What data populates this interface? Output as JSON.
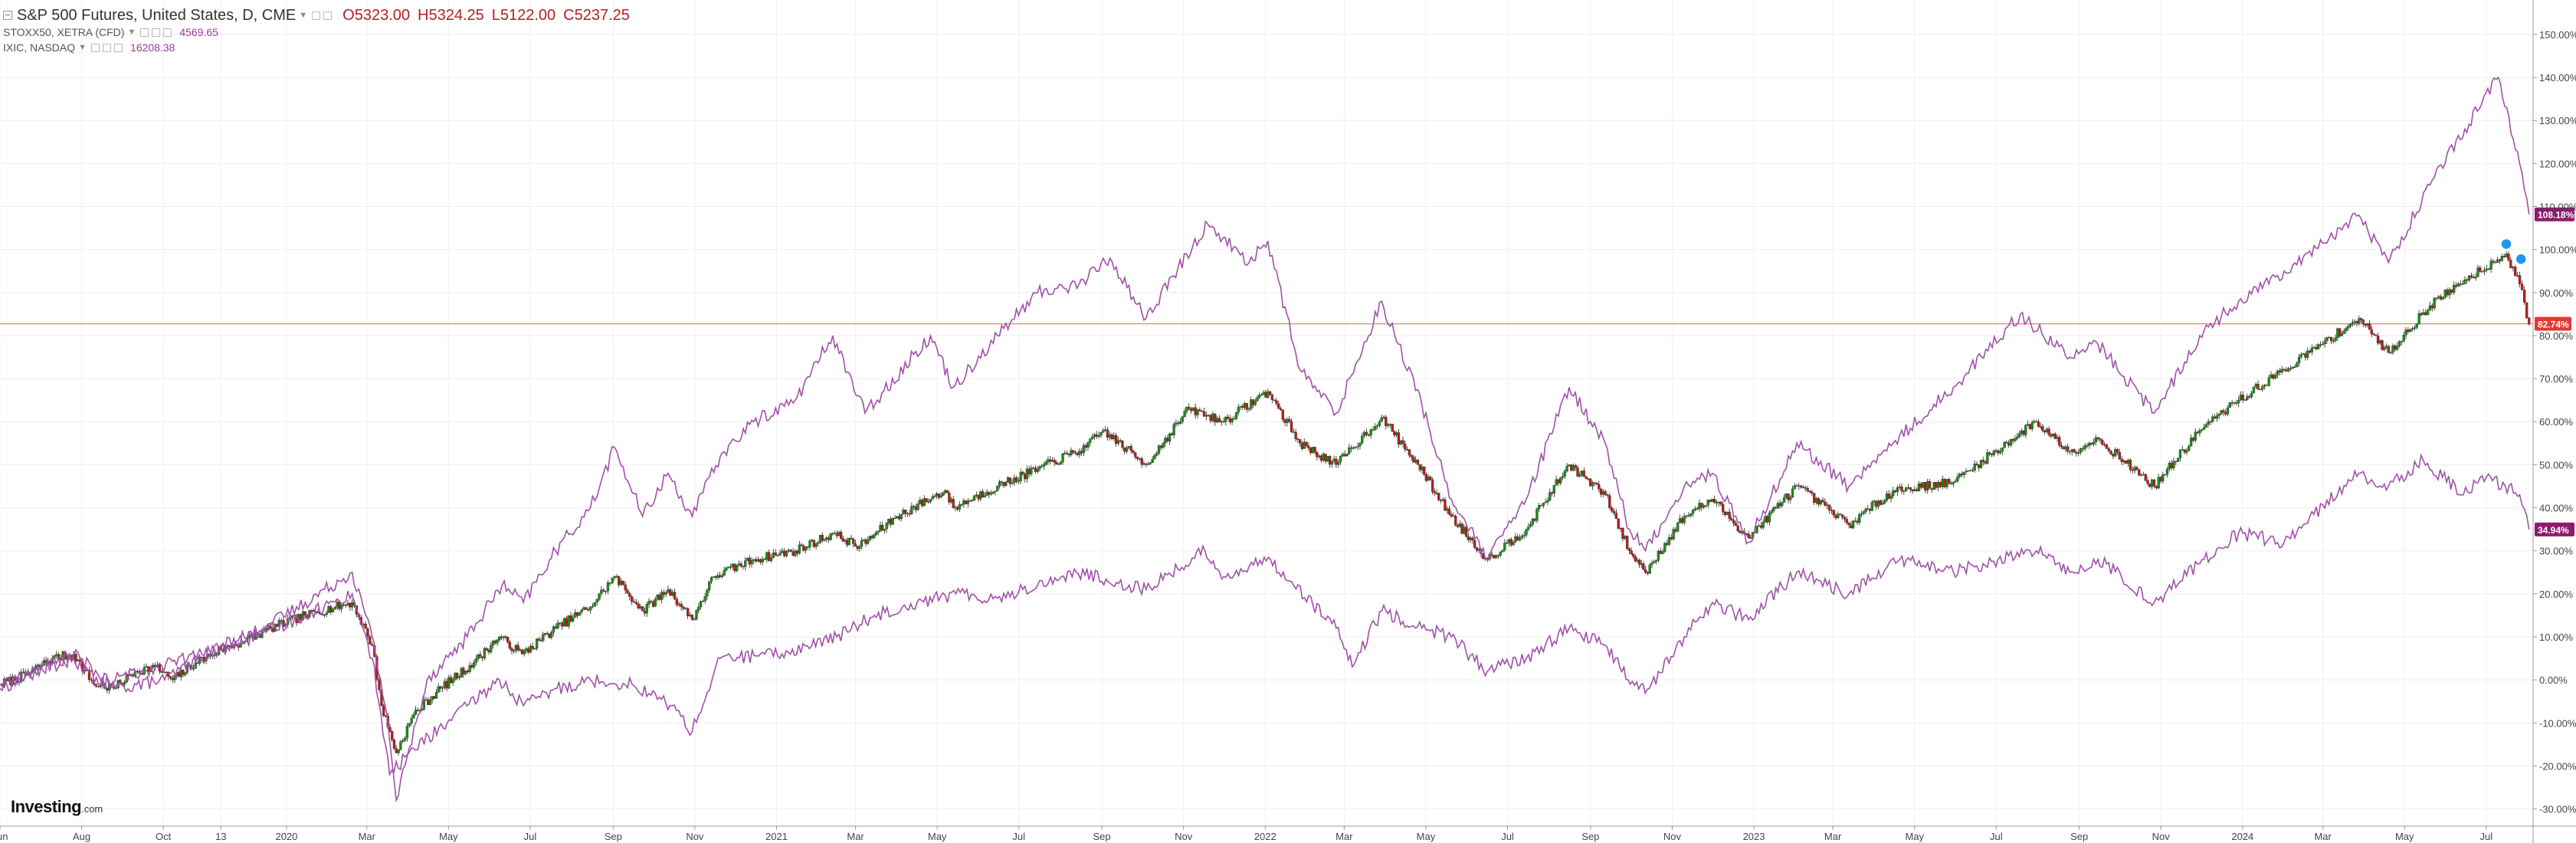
{
  "header": {
    "main_instrument": "S&P 500 Futures, United States, D, CME",
    "open_label": "O",
    "open": "5323.00",
    "high_label": "H",
    "high": "5324.25",
    "low_label": "L",
    "low": "5122.00",
    "close_label": "C",
    "close": "5237.25",
    "compare1_name": "STOXX50, XETRA (CFD)",
    "compare1_value": "4569.65",
    "compare2_name": "IXIC, NASDAQ",
    "compare2_value": "16208.38"
  },
  "brand": {
    "name": "Investing",
    "suffix": ".com"
  },
  "chart_data": {
    "type": "line",
    "y_unit": "%",
    "ylim": [
      -34,
      158
    ],
    "y_ticks": [
      -30,
      -20,
      -10,
      0,
      10,
      20,
      30,
      40,
      50,
      60,
      70,
      80,
      90,
      100,
      110,
      120,
      130,
      140,
      150
    ],
    "y_tick_labels": [
      "-30.00%",
      "-20.00%",
      "-10.00%",
      "0.00%",
      "10.00%",
      "20.00%",
      "30.00%",
      "40.00%",
      "50.00%",
      "60.00%",
      "70.00%",
      "80.00%",
      "90.00%",
      "100.00%",
      "110.00%",
      "120.00%",
      "130.00%",
      "140.00%",
      "150.00%"
    ],
    "x_range": [
      "2019-06-01",
      "2024-08-05"
    ],
    "x_ticks": [
      {
        "date": "2019-06-01",
        "label": "Jun"
      },
      {
        "date": "2019-08-01",
        "label": "Aug"
      },
      {
        "date": "2019-10-01",
        "label": "Oct"
      },
      {
        "date": "2019-11-13",
        "label": "13"
      },
      {
        "date": "2020-01-01",
        "label": "2020"
      },
      {
        "date": "2020-03-01",
        "label": "Mar"
      },
      {
        "date": "2020-05-01",
        "label": "May"
      },
      {
        "date": "2020-07-01",
        "label": "Jul"
      },
      {
        "date": "2020-09-01",
        "label": "Sep"
      },
      {
        "date": "2020-11-01",
        "label": "Nov"
      },
      {
        "date": "2021-01-01",
        "label": "2021"
      },
      {
        "date": "2021-03-01",
        "label": "Mar"
      },
      {
        "date": "2021-05-01",
        "label": "May"
      },
      {
        "date": "2021-07-01",
        "label": "Jul"
      },
      {
        "date": "2021-09-01",
        "label": "Sep"
      },
      {
        "date": "2021-11-01",
        "label": "Nov"
      },
      {
        "date": "2022-01-01",
        "label": "2022"
      },
      {
        "date": "2022-03-01",
        "label": "Mar"
      },
      {
        "date": "2022-05-01",
        "label": "May"
      },
      {
        "date": "2022-07-01",
        "label": "Jul"
      },
      {
        "date": "2022-09-01",
        "label": "Sep"
      },
      {
        "date": "2022-11-01",
        "label": "Nov"
      },
      {
        "date": "2023-01-01",
        "label": "2023"
      },
      {
        "date": "2023-03-01",
        "label": "Mar"
      },
      {
        "date": "2023-05-01",
        "label": "May"
      },
      {
        "date": "2023-07-01",
        "label": "Jul"
      },
      {
        "date": "2023-09-01",
        "label": "Sep"
      },
      {
        "date": "2023-11-01",
        "label": "Nov"
      },
      {
        "date": "2024-01-01",
        "label": "2024"
      },
      {
        "date": "2024-03-01",
        "label": "Mar"
      },
      {
        "date": "2024-05-01",
        "label": "May"
      },
      {
        "date": "2024-07-01",
        "label": "Jul"
      }
    ],
    "price_line": {
      "value": 82.74,
      "label": "82.74%",
      "color": "#e53935"
    },
    "series": [
      {
        "name": "S&P 500 Futures, United States, D, CME",
        "style": "candlestick",
        "up_color": "#1b8a1b",
        "down_color": "#b71c1c",
        "points": [
          [
            "2019-06-01",
            -1
          ],
          [
            "2019-06-20",
            1
          ],
          [
            "2019-07-10",
            5
          ],
          [
            "2019-07-26",
            6
          ],
          [
            "2019-08-10",
            -1
          ],
          [
            "2019-08-25",
            -2
          ],
          [
            "2019-09-10",
            2
          ],
          [
            "2019-09-25",
            3
          ],
          [
            "2019-10-08",
            0
          ],
          [
            "2019-10-25",
            4
          ],
          [
            "2019-11-13",
            7
          ],
          [
            "2019-12-01",
            9
          ],
          [
            "2019-12-20",
            12
          ],
          [
            "2020-01-15",
            15
          ],
          [
            "2020-02-19",
            18
          ],
          [
            "2020-03-05",
            8
          ],
          [
            "2020-03-12",
            -6
          ],
          [
            "2020-03-23",
            -17
          ],
          [
            "2020-04-05",
            -8
          ],
          [
            "2020-04-25",
            -2
          ],
          [
            "2020-05-20",
            4
          ],
          [
            "2020-06-08",
            10
          ],
          [
            "2020-06-25",
            6
          ],
          [
            "2020-07-20",
            12
          ],
          [
            "2020-08-15",
            17
          ],
          [
            "2020-09-02",
            24
          ],
          [
            "2020-09-23",
            16
          ],
          [
            "2020-10-12",
            21
          ],
          [
            "2020-10-30",
            14
          ],
          [
            "2020-11-15",
            24
          ],
          [
            "2020-12-15",
            28
          ],
          [
            "2021-01-15",
            30
          ],
          [
            "2021-02-12",
            34
          ],
          [
            "2021-03-04",
            31
          ],
          [
            "2021-04-01",
            38
          ],
          [
            "2021-05-07",
            44
          ],
          [
            "2021-05-13",
            40
          ],
          [
            "2021-06-15",
            45
          ],
          [
            "2021-07-15",
            49
          ],
          [
            "2021-08-20",
            54
          ],
          [
            "2021-09-02",
            58
          ],
          [
            "2021-10-04",
            50
          ],
          [
            "2021-11-05",
            63
          ],
          [
            "2021-12-01",
            60
          ],
          [
            "2022-01-03",
            67
          ],
          [
            "2022-01-27",
            55
          ],
          [
            "2022-02-23",
            50
          ],
          [
            "2022-03-29",
            61
          ],
          [
            "2022-04-25",
            50
          ],
          [
            "2022-05-20",
            38
          ],
          [
            "2022-06-16",
            28
          ],
          [
            "2022-07-15",
            35
          ],
          [
            "2022-08-16",
            50
          ],
          [
            "2022-09-12",
            43
          ],
          [
            "2022-09-30",
            30
          ],
          [
            "2022-10-12",
            25
          ],
          [
            "2022-11-10",
            38
          ],
          [
            "2022-12-01",
            42
          ],
          [
            "2022-12-28",
            33
          ],
          [
            "2023-02-02",
            45
          ],
          [
            "2023-03-13",
            36
          ],
          [
            "2023-04-15",
            44
          ],
          [
            "2023-05-30",
            46
          ],
          [
            "2023-07-31",
            60
          ],
          [
            "2023-08-25",
            53
          ],
          [
            "2023-09-15",
            56
          ],
          [
            "2023-10-27",
            45
          ],
          [
            "2023-11-30",
            58
          ],
          [
            "2023-12-29",
            65
          ],
          [
            "2024-02-01",
            72
          ],
          [
            "2024-03-28",
            84
          ],
          [
            "2024-04-19",
            76
          ],
          [
            "2024-05-20",
            87
          ],
          [
            "2024-06-15",
            93
          ],
          [
            "2024-07-16",
            99
          ],
          [
            "2024-07-26",
            92
          ],
          [
            "2024-08-02",
            82.74
          ]
        ]
      },
      {
        "name": "IXIC, NASDAQ",
        "style": "line",
        "color": "#a051a8",
        "last_label": "108.18%",
        "points": [
          [
            "2019-06-01",
            -2
          ],
          [
            "2019-07-26",
            6
          ],
          [
            "2019-08-26",
            -2
          ],
          [
            "2019-10-02",
            0
          ],
          [
            "2019-11-13",
            8
          ],
          [
            "2019-12-15",
            12
          ],
          [
            "2020-01-15",
            18
          ],
          [
            "2020-02-19",
            25
          ],
          [
            "2020-03-05",
            10
          ],
          [
            "2020-03-16",
            -8
          ],
          [
            "2020-03-23",
            -28
          ],
          [
            "2020-04-15",
            0
          ],
          [
            "2020-05-15",
            10
          ],
          [
            "2020-06-10",
            22
          ],
          [
            "2020-06-26",
            18
          ],
          [
            "2020-07-20",
            30
          ],
          [
            "2020-08-15",
            40
          ],
          [
            "2020-09-02",
            54
          ],
          [
            "2020-09-23",
            38
          ],
          [
            "2020-10-12",
            48
          ],
          [
            "2020-10-30",
            38
          ],
          [
            "2020-11-20",
            52
          ],
          [
            "2020-12-15",
            60
          ],
          [
            "2021-01-15",
            65
          ],
          [
            "2021-02-12",
            80
          ],
          [
            "2021-03-08",
            62
          ],
          [
            "2021-04-26",
            80
          ],
          [
            "2021-05-13",
            68
          ],
          [
            "2021-06-15",
            80
          ],
          [
            "2021-07-15",
            90
          ],
          [
            "2021-08-15",
            92
          ],
          [
            "2021-09-07",
            98
          ],
          [
            "2021-10-04",
            84
          ],
          [
            "2021-11-19",
            106
          ],
          [
            "2021-12-20",
            97
          ],
          [
            "2022-01-03",
            102
          ],
          [
            "2022-01-27",
            72
          ],
          [
            "2022-02-23",
            62
          ],
          [
            "2022-03-29",
            88
          ],
          [
            "2022-04-28",
            64
          ],
          [
            "2022-05-20",
            42
          ],
          [
            "2022-06-16",
            28
          ],
          [
            "2022-07-15",
            42
          ],
          [
            "2022-08-16",
            68
          ],
          [
            "2022-09-12",
            55
          ],
          [
            "2022-09-30",
            35
          ],
          [
            "2022-10-12",
            30
          ],
          [
            "2022-11-10",
            45
          ],
          [
            "2022-12-01",
            48
          ],
          [
            "2022-12-28",
            32
          ],
          [
            "2023-02-02",
            55
          ],
          [
            "2023-03-13",
            45
          ],
          [
            "2023-04-15",
            55
          ],
          [
            "2023-05-30",
            68
          ],
          [
            "2023-07-19",
            85
          ],
          [
            "2023-08-25",
            75
          ],
          [
            "2023-09-15",
            78
          ],
          [
            "2023-10-27",
            62
          ],
          [
            "2023-11-30",
            80
          ],
          [
            "2023-12-29",
            88
          ],
          [
            "2024-02-01",
            95
          ],
          [
            "2024-03-28",
            108
          ],
          [
            "2024-04-19",
            97
          ],
          [
            "2024-05-20",
            115
          ],
          [
            "2024-06-15",
            128
          ],
          [
            "2024-07-10",
            140
          ],
          [
            "2024-07-26",
            120
          ],
          [
            "2024-08-02",
            108.18
          ]
        ]
      },
      {
        "name": "STOXX50, XETRA (CFD)",
        "style": "line",
        "color": "#a051a8",
        "last_label": "34.94%",
        "points": [
          [
            "2019-06-01",
            -1
          ],
          [
            "2019-07-26",
            5
          ],
          [
            "2019-08-15",
            -1
          ],
          [
            "2019-09-25",
            3
          ],
          [
            "2019-11-13",
            7
          ],
          [
            "2019-12-15",
            11
          ],
          [
            "2020-01-15",
            15
          ],
          [
            "2020-02-19",
            20
          ],
          [
            "2020-03-05",
            5
          ],
          [
            "2020-03-18",
            -22
          ],
          [
            "2020-04-05",
            -16
          ],
          [
            "2020-04-30",
            -10
          ],
          [
            "2020-06-08",
            0
          ],
          [
            "2020-06-26",
            -6
          ],
          [
            "2020-07-21",
            -2
          ],
          [
            "2020-08-15",
            0
          ],
          [
            "2020-09-15",
            -1
          ],
          [
            "2020-10-15",
            -6
          ],
          [
            "2020-10-30",
            -12
          ],
          [
            "2020-11-20",
            5
          ],
          [
            "2021-01-05",
            6
          ],
          [
            "2021-02-15",
            10
          ],
          [
            "2021-03-15",
            15
          ],
          [
            "2021-04-16",
            18
          ],
          [
            "2021-05-15",
            20
          ],
          [
            "2021-06-15",
            19
          ],
          [
            "2021-07-15",
            22
          ],
          [
            "2021-08-13",
            25
          ],
          [
            "2021-10-04",
            21
          ],
          [
            "2021-11-17",
            30
          ],
          [
            "2021-12-01",
            24
          ],
          [
            "2022-01-05",
            28
          ],
          [
            "2022-02-23",
            12
          ],
          [
            "2022-03-07",
            3
          ],
          [
            "2022-03-29",
            16
          ],
          [
            "2022-04-28",
            12
          ],
          [
            "2022-05-20",
            10
          ],
          [
            "2022-06-16",
            2
          ],
          [
            "2022-07-15",
            5
          ],
          [
            "2022-08-16",
            12
          ],
          [
            "2022-09-12",
            8
          ],
          [
            "2022-09-29",
            0
          ],
          [
            "2022-10-15",
            -2
          ],
          [
            "2022-11-10",
            10
          ],
          [
            "2022-12-01",
            18
          ],
          [
            "2022-12-28",
            14
          ],
          [
            "2023-02-02",
            25
          ],
          [
            "2023-03-13",
            20
          ],
          [
            "2023-04-20",
            28
          ],
          [
            "2023-05-30",
            25
          ],
          [
            "2023-07-31",
            30
          ],
          [
            "2023-08-25",
            25
          ],
          [
            "2023-09-15",
            28
          ],
          [
            "2023-10-27",
            18
          ],
          [
            "2023-11-30",
            27
          ],
          [
            "2023-12-29",
            34
          ],
          [
            "2024-02-01",
            32
          ],
          [
            "2024-03-28",
            48
          ],
          [
            "2024-04-19",
            45
          ],
          [
            "2024-05-15",
            51
          ],
          [
            "2024-06-14",
            43
          ],
          [
            "2024-07-01",
            47
          ],
          [
            "2024-07-26",
            43
          ],
          [
            "2024-08-02",
            34.94
          ]
        ]
      }
    ]
  }
}
